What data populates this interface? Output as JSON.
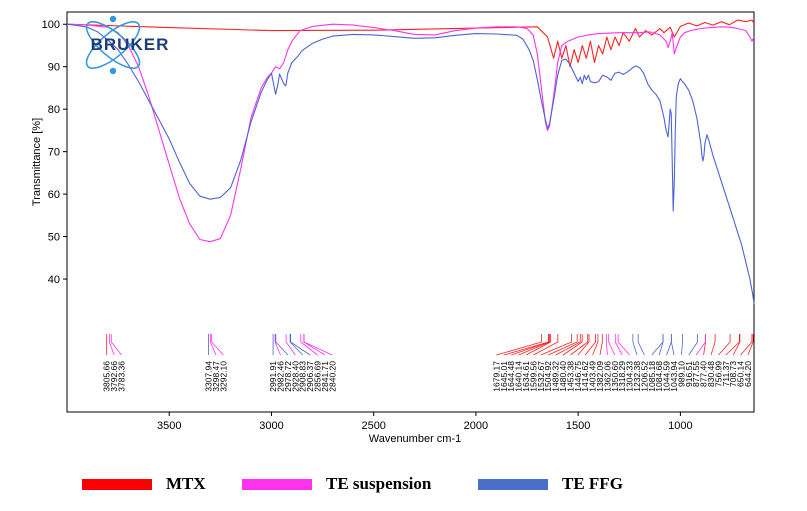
{
  "chart_data": {
    "type": "line",
    "xlabel": "Wavenumber cm-1",
    "ylabel": "Transmittance [%]",
    "xlim": [
      4000,
      640
    ],
    "x_reversed": true,
    "ylim": [
      28,
      101
    ],
    "x_ticks": [
      "3500",
      "3000",
      "2500",
      "2000",
      "1500",
      "1000"
    ],
    "y_ticks": [
      "100",
      "90",
      "80",
      "70",
      "60",
      "50",
      "40"
    ],
    "logo_text": "BRUKER",
    "series": [
      {
        "name": "MTX",
        "color": "#ff2222",
        "points": [
          [
            4000,
            100
          ],
          [
            3800,
            99.7
          ],
          [
            3500,
            99.2
          ],
          [
            3000,
            98.5
          ],
          [
            2500,
            98.6
          ],
          [
            2000,
            99.1
          ],
          [
            1700,
            99.4
          ],
          [
            1650,
            97
          ],
          [
            1620,
            92
          ],
          [
            1600,
            96
          ],
          [
            1580,
            92
          ],
          [
            1560,
            95
          ],
          [
            1540,
            90
          ],
          [
            1520,
            94
          ],
          [
            1500,
            91
          ],
          [
            1480,
            95
          ],
          [
            1460,
            92
          ],
          [
            1440,
            96
          ],
          [
            1420,
            91
          ],
          [
            1400,
            95
          ],
          [
            1380,
            93
          ],
          [
            1360,
            97
          ],
          [
            1340,
            94
          ],
          [
            1320,
            97
          ],
          [
            1300,
            95
          ],
          [
            1280,
            98
          ],
          [
            1250,
            96
          ],
          [
            1220,
            99
          ],
          [
            1200,
            97
          ],
          [
            1170,
            98.5
          ],
          [
            1140,
            97.5
          ],
          [
            1100,
            99
          ],
          [
            1080,
            98
          ],
          [
            1050,
            99.3
          ],
          [
            1030,
            97
          ],
          [
            1000,
            99.5
          ],
          [
            960,
            100.3
          ],
          [
            920,
            99.6
          ],
          [
            880,
            100.4
          ],
          [
            840,
            99.8
          ],
          [
            800,
            100.6
          ],
          [
            760,
            99.9
          ],
          [
            720,
            101
          ],
          [
            680,
            100.6
          ],
          [
            650,
            101
          ],
          [
            640,
            100.2
          ]
        ]
      },
      {
        "name": "TE suspension",
        "color": "#ff33ee",
        "points": [
          [
            4000,
            100
          ],
          [
            3900,
            99.8
          ],
          [
            3800,
            99.3
          ],
          [
            3750,
            98
          ],
          [
            3700,
            95
          ],
          [
            3650,
            90
          ],
          [
            3600,
            83
          ],
          [
            3550,
            75
          ],
          [
            3500,
            67
          ],
          [
            3450,
            59
          ],
          [
            3400,
            53
          ],
          [
            3350,
            49.3
          ],
          [
            3300,
            48.8
          ],
          [
            3250,
            49.5
          ],
          [
            3200,
            55
          ],
          [
            3150,
            66
          ],
          [
            3100,
            78
          ],
          [
            3050,
            85
          ],
          [
            3020,
            87.5
          ],
          [
            3000,
            88.5
          ],
          [
            2980,
            90
          ],
          [
            2960,
            89.5
          ],
          [
            2940,
            91
          ],
          [
            2920,
            94
          ],
          [
            2900,
            96
          ],
          [
            2860,
            98.5
          ],
          [
            2800,
            99.5
          ],
          [
            2700,
            100
          ],
          [
            2600,
            99.8
          ],
          [
            2500,
            99.2
          ],
          [
            2400,
            98.5
          ],
          [
            2300,
            97.6
          ],
          [
            2200,
            97.5
          ],
          [
            2100,
            98.5
          ],
          [
            2000,
            99.1
          ],
          [
            1900,
            99.4
          ],
          [
            1800,
            99.4
          ],
          [
            1750,
            99
          ],
          [
            1720,
            97.5
          ],
          [
            1700,
            93
          ],
          [
            1680,
            85
          ],
          [
            1660,
            77
          ],
          [
            1650,
            75
          ],
          [
            1640,
            76
          ],
          [
            1620,
            83
          ],
          [
            1600,
            91
          ],
          [
            1580,
            95
          ],
          [
            1550,
            96
          ],
          [
            1500,
            97
          ],
          [
            1450,
            97.5
          ],
          [
            1400,
            97.8
          ],
          [
            1300,
            98
          ],
          [
            1200,
            98
          ],
          [
            1150,
            98.2
          ],
          [
            1100,
            97.5
          ],
          [
            1070,
            96
          ],
          [
            1060,
            94.5
          ],
          [
            1050,
            96
          ],
          [
            1040,
            98
          ],
          [
            1030,
            93
          ],
          [
            1020,
            94.5
          ],
          [
            1000,
            97
          ],
          [
            980,
            98
          ],
          [
            950,
            98.5
          ],
          [
            900,
            99
          ],
          [
            850,
            99.2
          ],
          [
            800,
            99.4
          ],
          [
            760,
            99.3
          ],
          [
            720,
            99
          ],
          [
            680,
            98.5
          ],
          [
            660,
            97
          ],
          [
            650,
            96
          ],
          [
            640,
            97
          ]
        ]
      },
      {
        "name": "TE FFG",
        "color": "#4f63d6",
        "points": [
          [
            4000,
            100
          ],
          [
            3950,
            99.7
          ],
          [
            3900,
            99.3
          ],
          [
            3850,
            98.2
          ],
          [
            3800,
            96.3
          ],
          [
            3750,
            94
          ],
          [
            3700,
            90.5
          ],
          [
            3650,
            86.5
          ],
          [
            3600,
            82
          ],
          [
            3550,
            77.5
          ],
          [
            3500,
            73
          ],
          [
            3450,
            67.5
          ],
          [
            3400,
            62.5
          ],
          [
            3350,
            59.5
          ],
          [
            3300,
            58.8
          ],
          [
            3250,
            59.2
          ],
          [
            3200,
            61.5
          ],
          [
            3150,
            68
          ],
          [
            3100,
            77
          ],
          [
            3050,
            84
          ],
          [
            3020,
            87
          ],
          [
            3000,
            88.5
          ],
          [
            2990,
            86
          ],
          [
            2980,
            83.5
          ],
          [
            2970,
            85.5
          ],
          [
            2960,
            88.3
          ],
          [
            2940,
            86
          ],
          [
            2930,
            85.5
          ],
          [
            2920,
            88.5
          ],
          [
            2900,
            91
          ],
          [
            2870,
            92.5
          ],
          [
            2850,
            93.8
          ],
          [
            2800,
            95.5
          ],
          [
            2750,
            96.5
          ],
          [
            2700,
            97.2
          ],
          [
            2600,
            97.6
          ],
          [
            2500,
            97.5
          ],
          [
            2400,
            97.1
          ],
          [
            2300,
            96.7
          ],
          [
            2200,
            96.8
          ],
          [
            2100,
            97.4
          ],
          [
            2000,
            97.8
          ],
          [
            1900,
            97.7
          ],
          [
            1800,
            97.4
          ],
          [
            1770,
            96.5
          ],
          [
            1740,
            94
          ],
          [
            1720,
            91.5
          ],
          [
            1700,
            87
          ],
          [
            1680,
            82
          ],
          [
            1660,
            77.5
          ],
          [
            1650,
            75.5
          ],
          [
            1640,
            76.5
          ],
          [
            1620,
            82
          ],
          [
            1600,
            88
          ],
          [
            1580,
            91.5
          ],
          [
            1560,
            91.8
          ],
          [
            1540,
            90.5
          ],
          [
            1520,
            88.5
          ],
          [
            1500,
            86.5
          ],
          [
            1490,
            87.5
          ],
          [
            1480,
            86
          ],
          [
            1470,
            88
          ],
          [
            1460,
            87
          ],
          [
            1450,
            88
          ],
          [
            1440,
            86.5
          ],
          [
            1420,
            86.2
          ],
          [
            1400,
            86.5
          ],
          [
            1380,
            88
          ],
          [
            1360,
            87.6
          ],
          [
            1340,
            86.8
          ],
          [
            1320,
            88.5
          ],
          [
            1300,
            88.7
          ],
          [
            1280,
            88.2
          ],
          [
            1260,
            88.7
          ],
          [
            1240,
            89.5
          ],
          [
            1220,
            90.2
          ],
          [
            1200,
            89.8
          ],
          [
            1180,
            88.5
          ],
          [
            1160,
            86
          ],
          [
            1140,
            84.5
          ],
          [
            1120,
            83.5
          ],
          [
            1100,
            82
          ],
          [
            1080,
            78
          ],
          [
            1070,
            75
          ],
          [
            1060,
            73.5
          ],
          [
            1050,
            80
          ],
          [
            1045,
            79
          ],
          [
            1040,
            68
          ],
          [
            1035,
            56
          ],
          [
            1030,
            63
          ],
          [
            1025,
            75
          ],
          [
            1020,
            83
          ],
          [
            1010,
            86
          ],
          [
            1000,
            87.2
          ],
          [
            990,
            86.5
          ],
          [
            980,
            86
          ],
          [
            960,
            84.5
          ],
          [
            940,
            82
          ],
          [
            920,
            78
          ],
          [
            900,
            72
          ],
          [
            895,
            69
          ],
          [
            890,
            67.8
          ],
          [
            885,
            69
          ],
          [
            880,
            72
          ],
          [
            870,
            74
          ],
          [
            860,
            72.5
          ],
          [
            840,
            69
          ],
          [
            820,
            66
          ],
          [
            800,
            63
          ],
          [
            780,
            60
          ],
          [
            760,
            57
          ],
          [
            740,
            54
          ],
          [
            720,
            51
          ],
          [
            700,
            48
          ],
          [
            680,
            44
          ],
          [
            660,
            40
          ],
          [
            645,
            36
          ],
          [
            640,
            34.2
          ]
        ]
      }
    ],
    "peak_groups": [
      {
        "color": "#ff2222",
        "labels": [
          "3805.66",
          "1679.17",
          "1645.01",
          "1644.48",
          "1640.14",
          "1634.61",
          "1599.56",
          "1532.67",
          "1504.92",
          "1489.32",
          "1480.40",
          "1453.38",
          "1446.75",
          "1414.62",
          "1403.49",
          "1382.09",
          "877.40",
          "830.48",
          "756.99",
          "711.37",
          "708.73",
          "650.14",
          "644.20"
        ],
        "wn": [
          3805.66,
          1679.17,
          1645.01,
          1644.48,
          1640.14,
          1634.61,
          1599.56,
          1532.67,
          1504.92,
          1489.32,
          1480.4,
          1453.38,
          1446.75,
          1414.62,
          1403.49,
          1382.09,
          877.4,
          830.48,
          756.99,
          711.37,
          708.73,
          650.14,
          644.2
        ]
      },
      {
        "color": "#ff33ee",
        "labels": [
          "3792.66",
          "3783.36",
          "3298.47",
          "3292.10",
          "2982.46",
          "2928.40",
          "2856.69",
          "2841.71",
          "2840.20",
          "1362.06",
          "1350.60",
          "1318.29",
          "1304.33",
          "877.55"
        ],
        "wn": [
          3792.66,
          3783.36,
          3298.47,
          3292.1,
          2982.46,
          2928.4,
          2856.69,
          2841.71,
          2840.2,
          1362.06,
          1350.6,
          1318.29,
          1304.33,
          877.55
        ]
      },
      {
        "color": "#4f63d6",
        "labels": [
          "3307.94",
          "2991.91",
          "2978.72",
          "2908.83",
          "2906.37",
          "1232.38",
          "1206.52",
          "1085.18",
          "1084.68",
          "1044.59",
          "1043.94",
          "989.10",
          "916.51"
        ],
        "wn": [
          3307.94,
          2991.91,
          2978.72,
          2908.83,
          2906.37,
          1232.38,
          1206.52,
          1085.18,
          1084.68,
          1044.59,
          1043.94,
          989.1,
          916.51
        ]
      }
    ],
    "label_order": [
      "3805.66",
      "3792.66",
      "3783.36",
      "3307.94",
      "3298.47",
      "3292.10",
      "2991.91",
      "2982.46",
      "2978.72",
      "2928.40",
      "2908.83",
      "2906.37",
      "2856.69",
      "2841.71",
      "2840.20",
      "1679.17",
      "1645.01",
      "1644.48",
      "1640.14",
      "1634.61",
      "1599.56",
      "1532.67",
      "1504.92",
      "1489.32",
      "1480.40",
      "1453.38",
      "1446.75",
      "1414.62",
      "1403.49",
      "1382.09",
      "1362.06",
      "1350.60",
      "1318.29",
      "1304.33",
      "1232.38",
      "1206.52",
      "1085.18",
      "1084.68",
      "1044.59",
      "1043.94",
      "989.10",
      "916.51",
      "877.55",
      "877.40",
      "830.48",
      "756.99",
      "711.37",
      "708.73",
      "650.14",
      "644.20"
    ]
  },
  "legend": [
    {
      "label": "MTX",
      "color": "#ff0000"
    },
    {
      "label": "TE suspension",
      "color": "#ff33ee"
    },
    {
      "label": "TE FFG",
      "color": "#4a6fc8"
    }
  ]
}
